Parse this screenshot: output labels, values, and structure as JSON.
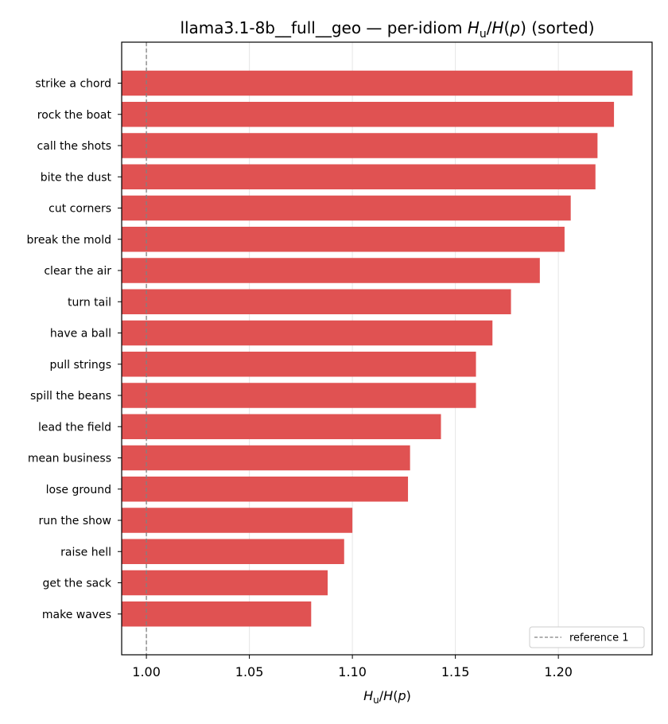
{
  "chart_data": {
    "type": "bar",
    "orientation": "horizontal",
    "title": "llama3.1-8b__full__geo — per-idiom H_u/H(p) (sorted)",
    "title_parts": {
      "prefix": "llama3.1-8b__full__geo — per-idiom ",
      "suffix": " (sorted)"
    },
    "xlabel": "H_u/H(p)",
    "categories": [
      "strike a chord",
      "rock the boat",
      "call the shots",
      "bite the dust",
      "cut corners",
      "break the mold",
      "clear the air",
      "turn tail",
      "have a ball",
      "pull strings",
      "spill the beans",
      "lead the field",
      "mean business",
      "lose ground",
      "run the show",
      "raise hell",
      "get the sack",
      "make waves"
    ],
    "values": [
      1.236,
      1.227,
      1.219,
      1.218,
      1.206,
      1.203,
      1.191,
      1.177,
      1.168,
      1.16,
      1.16,
      1.143,
      1.128,
      1.127,
      1.1,
      1.096,
      1.088,
      1.08
    ],
    "xlim": [
      0.988,
      1.2455
    ],
    "xticks": [
      1.0,
      1.05,
      1.1,
      1.15,
      1.2
    ],
    "xtick_labels": [
      "1.00",
      "1.05",
      "1.10",
      "1.15",
      "1.20"
    ],
    "reference_line": {
      "x": 1.0,
      "label": "reference 1"
    },
    "bar_color": "#e05252",
    "reference_color": "#808080",
    "grid": "x-major",
    "legend_position": "lower-right"
  }
}
